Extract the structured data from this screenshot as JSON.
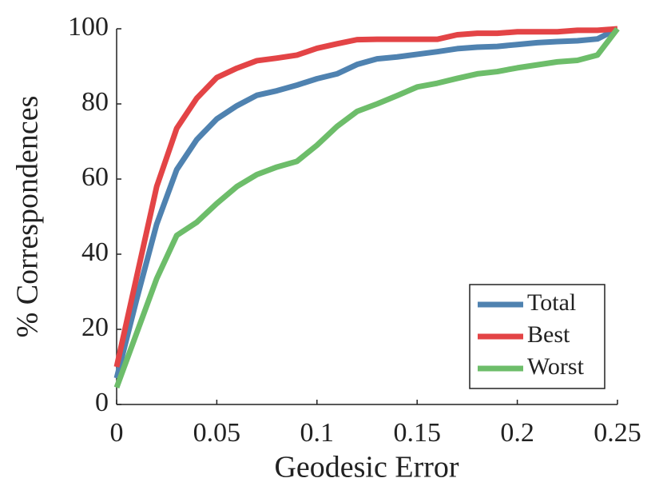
{
  "chart_data": {
    "type": "line",
    "x_label": "Geodesic Error",
    "y_label": "% Correspondences",
    "x": [
      0,
      0.01,
      0.02,
      0.03,
      0.04,
      0.05,
      0.06,
      0.07,
      0.08,
      0.09,
      0.1,
      0.11,
      0.12,
      0.13,
      0.14,
      0.15,
      0.16,
      0.17,
      0.18,
      0.19,
      0.2,
      0.21,
      0.22,
      0.23,
      0.24,
      0.25
    ],
    "series": [
      {
        "name": "Total",
        "color": "#4f82b0",
        "values": [
          7,
          28,
          48,
          62.5,
          70.5,
          76,
          79.5,
          82.3,
          83.5,
          85,
          86.7,
          88,
          90.5,
          92,
          92.5,
          93.2,
          93.9,
          94.7,
          95.1,
          95.3,
          95.8,
          96.3,
          96.6,
          96.8,
          97.3,
          100
        ]
      },
      {
        "name": "Best",
        "color": "#e34446",
        "values": [
          10,
          34,
          58,
          73.5,
          81.5,
          87,
          89.5,
          91.5,
          92.2,
          93,
          94.8,
          96,
          97.1,
          97.2,
          97.2,
          97.2,
          97.2,
          98.4,
          98.8,
          98.8,
          99.2,
          99.2,
          99.2,
          99.6,
          99.6,
          100
        ]
      },
      {
        "name": "Worst",
        "color": "#6dbd6a",
        "values": [
          4.5,
          19,
          33.5,
          45,
          48.5,
          53.5,
          58,
          61.2,
          63.2,
          64.7,
          69,
          74,
          78,
          80,
          82.2,
          84.5,
          85.5,
          86.8,
          88,
          88.6,
          89.6,
          90.4,
          91.2,
          91.6,
          93,
          100
        ]
      }
    ],
    "xlim": [
      0,
      0.25
    ],
    "xticks": [
      0,
      0.05,
      0.1,
      0.15,
      0.2,
      0.25
    ],
    "ylim": [
      0,
      100
    ],
    "yticks": [
      0,
      20,
      40,
      60,
      80,
      100
    ],
    "grid": false,
    "legend": "lower right"
  }
}
